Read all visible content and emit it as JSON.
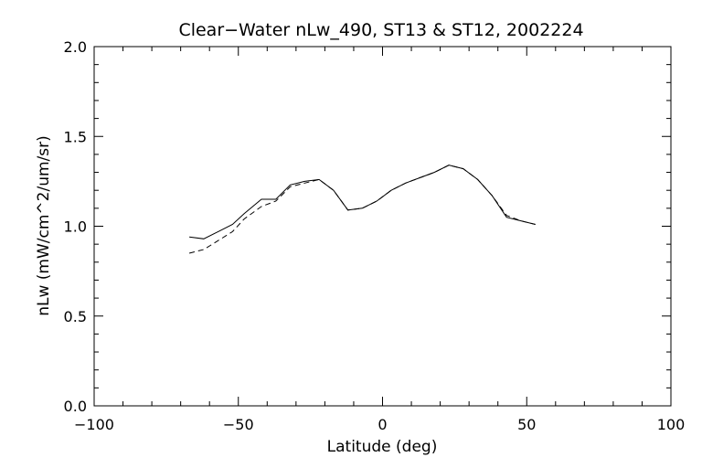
{
  "chart_data": {
    "type": "line",
    "title": "Clear−Water nLw_490, ST13 & ST12, 2002224",
    "xlabel": "Latitude (deg)",
    "ylabel": "nLw (mW/cm^2/um/sr)",
    "xlim": [
      -100,
      100
    ],
    "ylim": [
      0.0,
      2.0
    ],
    "x_ticks": [
      -100,
      -50,
      0,
      50,
      100
    ],
    "x_tick_labels": [
      "−100",
      "−50",
      "0",
      "50",
      "100"
    ],
    "y_ticks": [
      0.0,
      0.5,
      1.0,
      1.5,
      2.0
    ],
    "y_tick_labels": [
      "0.0",
      "0.5",
      "1.0",
      "1.5",
      "2.0"
    ],
    "grid": false,
    "series": [
      {
        "style": "solid",
        "points": [
          [
            -67,
            0.94
          ],
          [
            -62,
            0.93
          ],
          [
            -57,
            0.97
          ],
          [
            -52,
            1.01
          ],
          [
            -48,
            1.07
          ],
          [
            -42,
            1.15
          ],
          [
            -37,
            1.15
          ],
          [
            -32,
            1.23
          ],
          [
            -27,
            1.25
          ],
          [
            -22,
            1.26
          ],
          [
            -17,
            1.2
          ],
          [
            -12,
            1.09
          ],
          [
            -7,
            1.1
          ],
          [
            -2,
            1.14
          ],
          [
            3,
            1.2
          ],
          [
            8,
            1.24
          ],
          [
            13,
            1.27
          ],
          [
            18,
            1.3
          ],
          [
            23,
            1.34
          ],
          [
            28,
            1.32
          ],
          [
            33,
            1.26
          ],
          [
            38,
            1.17
          ],
          [
            43,
            1.05
          ],
          [
            48,
            1.03
          ],
          [
            53,
            1.01
          ]
        ]
      },
      {
        "style": "dashed",
        "points": [
          [
            -67,
            0.85
          ],
          [
            -62,
            0.87
          ],
          [
            -57,
            0.92
          ],
          [
            -52,
            0.97
          ],
          [
            -48,
            1.04
          ],
          [
            -42,
            1.11
          ],
          [
            -37,
            1.14
          ],
          [
            -32,
            1.22
          ],
          [
            -27,
            1.24
          ],
          [
            -22,
            1.26
          ],
          [
            -17,
            1.2
          ],
          [
            -12,
            1.09
          ],
          [
            -7,
            1.1
          ],
          [
            -2,
            1.14
          ],
          [
            3,
            1.2
          ],
          [
            8,
            1.24
          ],
          [
            13,
            1.27
          ],
          [
            18,
            1.3
          ],
          [
            23,
            1.34
          ],
          [
            28,
            1.32
          ],
          [
            33,
            1.26
          ],
          [
            38,
            1.17
          ],
          [
            43,
            1.06
          ],
          [
            48,
            1.03
          ],
          [
            53,
            1.01
          ]
        ]
      }
    ]
  }
}
